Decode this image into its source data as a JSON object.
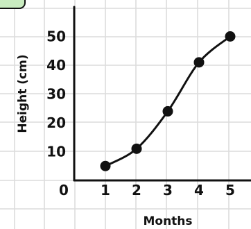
{
  "chart_data": {
    "type": "line",
    "title": "",
    "xlabel": "Months",
    "ylabel": "Height (cm)",
    "x": [
      1,
      2,
      3,
      4,
      5
    ],
    "series": [
      {
        "values": [
          5,
          11,
          24,
          41,
          50
        ]
      }
    ],
    "xticks": [
      "1",
      "2",
      "3",
      "4",
      "5"
    ],
    "yticks": [
      "10",
      "20",
      "30",
      "40",
      "50"
    ],
    "origin_label": "0",
    "xlim": [
      0,
      5
    ],
    "ylim": [
      0,
      50
    ],
    "grid": true,
    "markers": true,
    "line_color": "#111111",
    "grid_color": "#dcdcdc",
    "badge_color": "#c9ecc0"
  }
}
